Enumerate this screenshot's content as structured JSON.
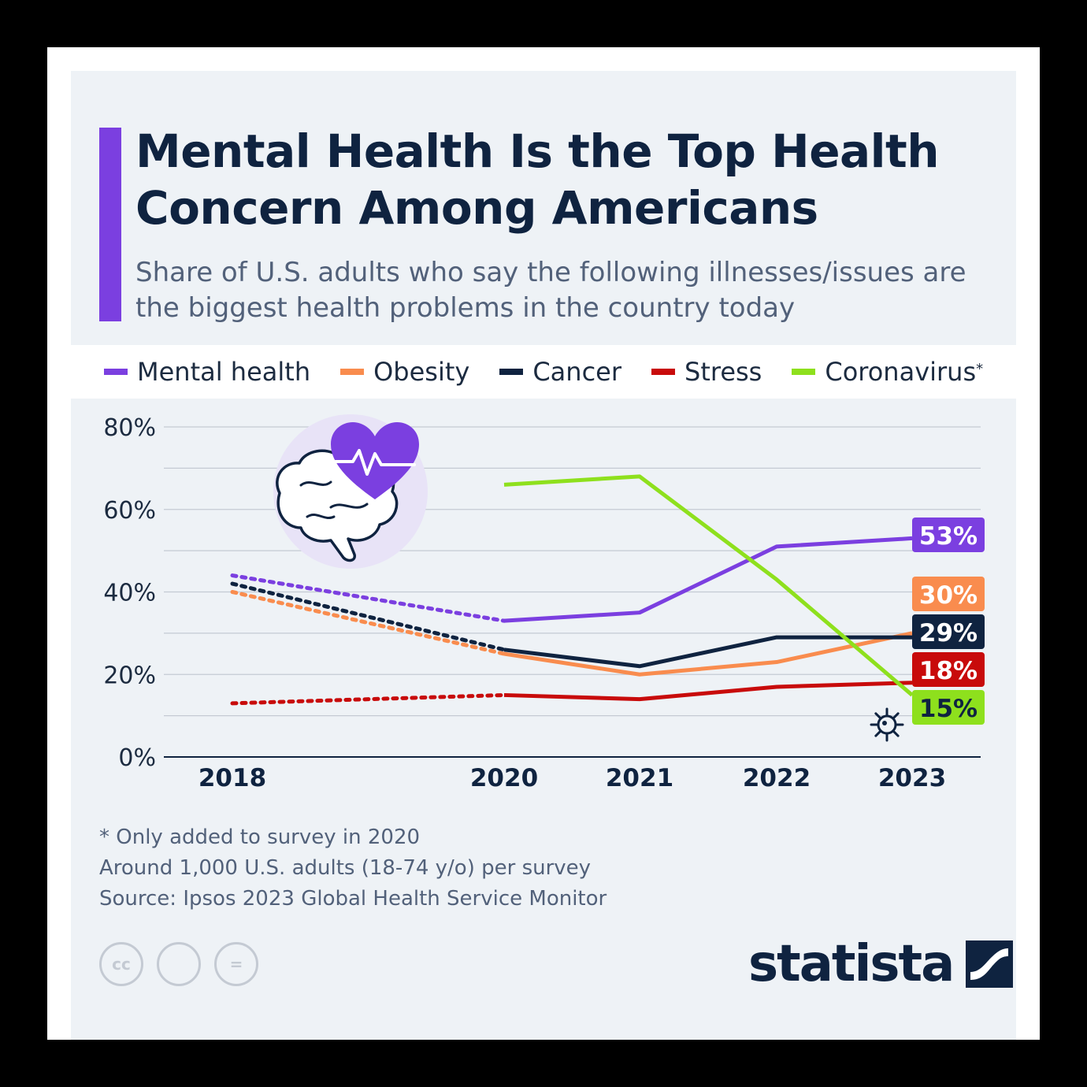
{
  "title": "Mental Health Is the Top Health Concern Among Americans",
  "subtitle": "Share of U.S. adults who say the following illnesses/issues are the biggest health problems in the country today",
  "legend": [
    {
      "label": "Mental health",
      "color": "#7b3fe0"
    },
    {
      "label": "Obesity",
      "color": "#f98c4e"
    },
    {
      "label": "Cancer",
      "color": "#0f2340"
    },
    {
      "label": "Stress",
      "color": "#c80b0b"
    },
    {
      "label": "Coronavirus",
      "sup": "*",
      "color": "#8ee01d"
    }
  ],
  "footnotes": [
    "* Only added to survey in 2020",
    "Around 1,000 U.S. adults (18-74 y/o) per survey",
    "Source: Ipsos 2023 Global Health Service Monitor"
  ],
  "license_icons": [
    "cc-icon",
    "attribution-icon",
    "no-derivatives-icon"
  ],
  "license_icon_glyphs": [
    "cc",
    "",
    "="
  ],
  "brand": {
    "name": "statista"
  },
  "illustration_icons": [
    "heart-icon",
    "pulse-icon",
    "brain-icon",
    "virus-icon"
  ],
  "chart_data": {
    "type": "line",
    "x": [
      2018,
      2020,
      2021,
      2022,
      2023
    ],
    "xticks": [
      "2018",
      "2020",
      "2021",
      "2022",
      "2023"
    ],
    "ylim": [
      0,
      80
    ],
    "yticks": [
      "0%",
      "20%",
      "40%",
      "60%",
      "80%"
    ],
    "grid": true,
    "legend_position": "top",
    "series": [
      {
        "name": "Mental health",
        "color": "#7b3fe0",
        "values": [
          44,
          33,
          35,
          51,
          53
        ],
        "end_label": "53%"
      },
      {
        "name": "Obesity",
        "color": "#f98c4e",
        "values": [
          40,
          25,
          20,
          23,
          30
        ],
        "end_label": "30%"
      },
      {
        "name": "Cancer",
        "color": "#0f2340",
        "values": [
          42,
          26,
          22,
          29,
          29
        ],
        "end_label": "29%"
      },
      {
        "name": "Stress",
        "color": "#c80b0b",
        "values": [
          13,
          15,
          14,
          17,
          18
        ],
        "end_label": "18%"
      },
      {
        "name": "Coronavirus",
        "color": "#8ee01d",
        "values": [
          null,
          66,
          68,
          43,
          15
        ],
        "end_label": "15%"
      }
    ],
    "annotation": "2018–2020 segments shown dotted"
  }
}
